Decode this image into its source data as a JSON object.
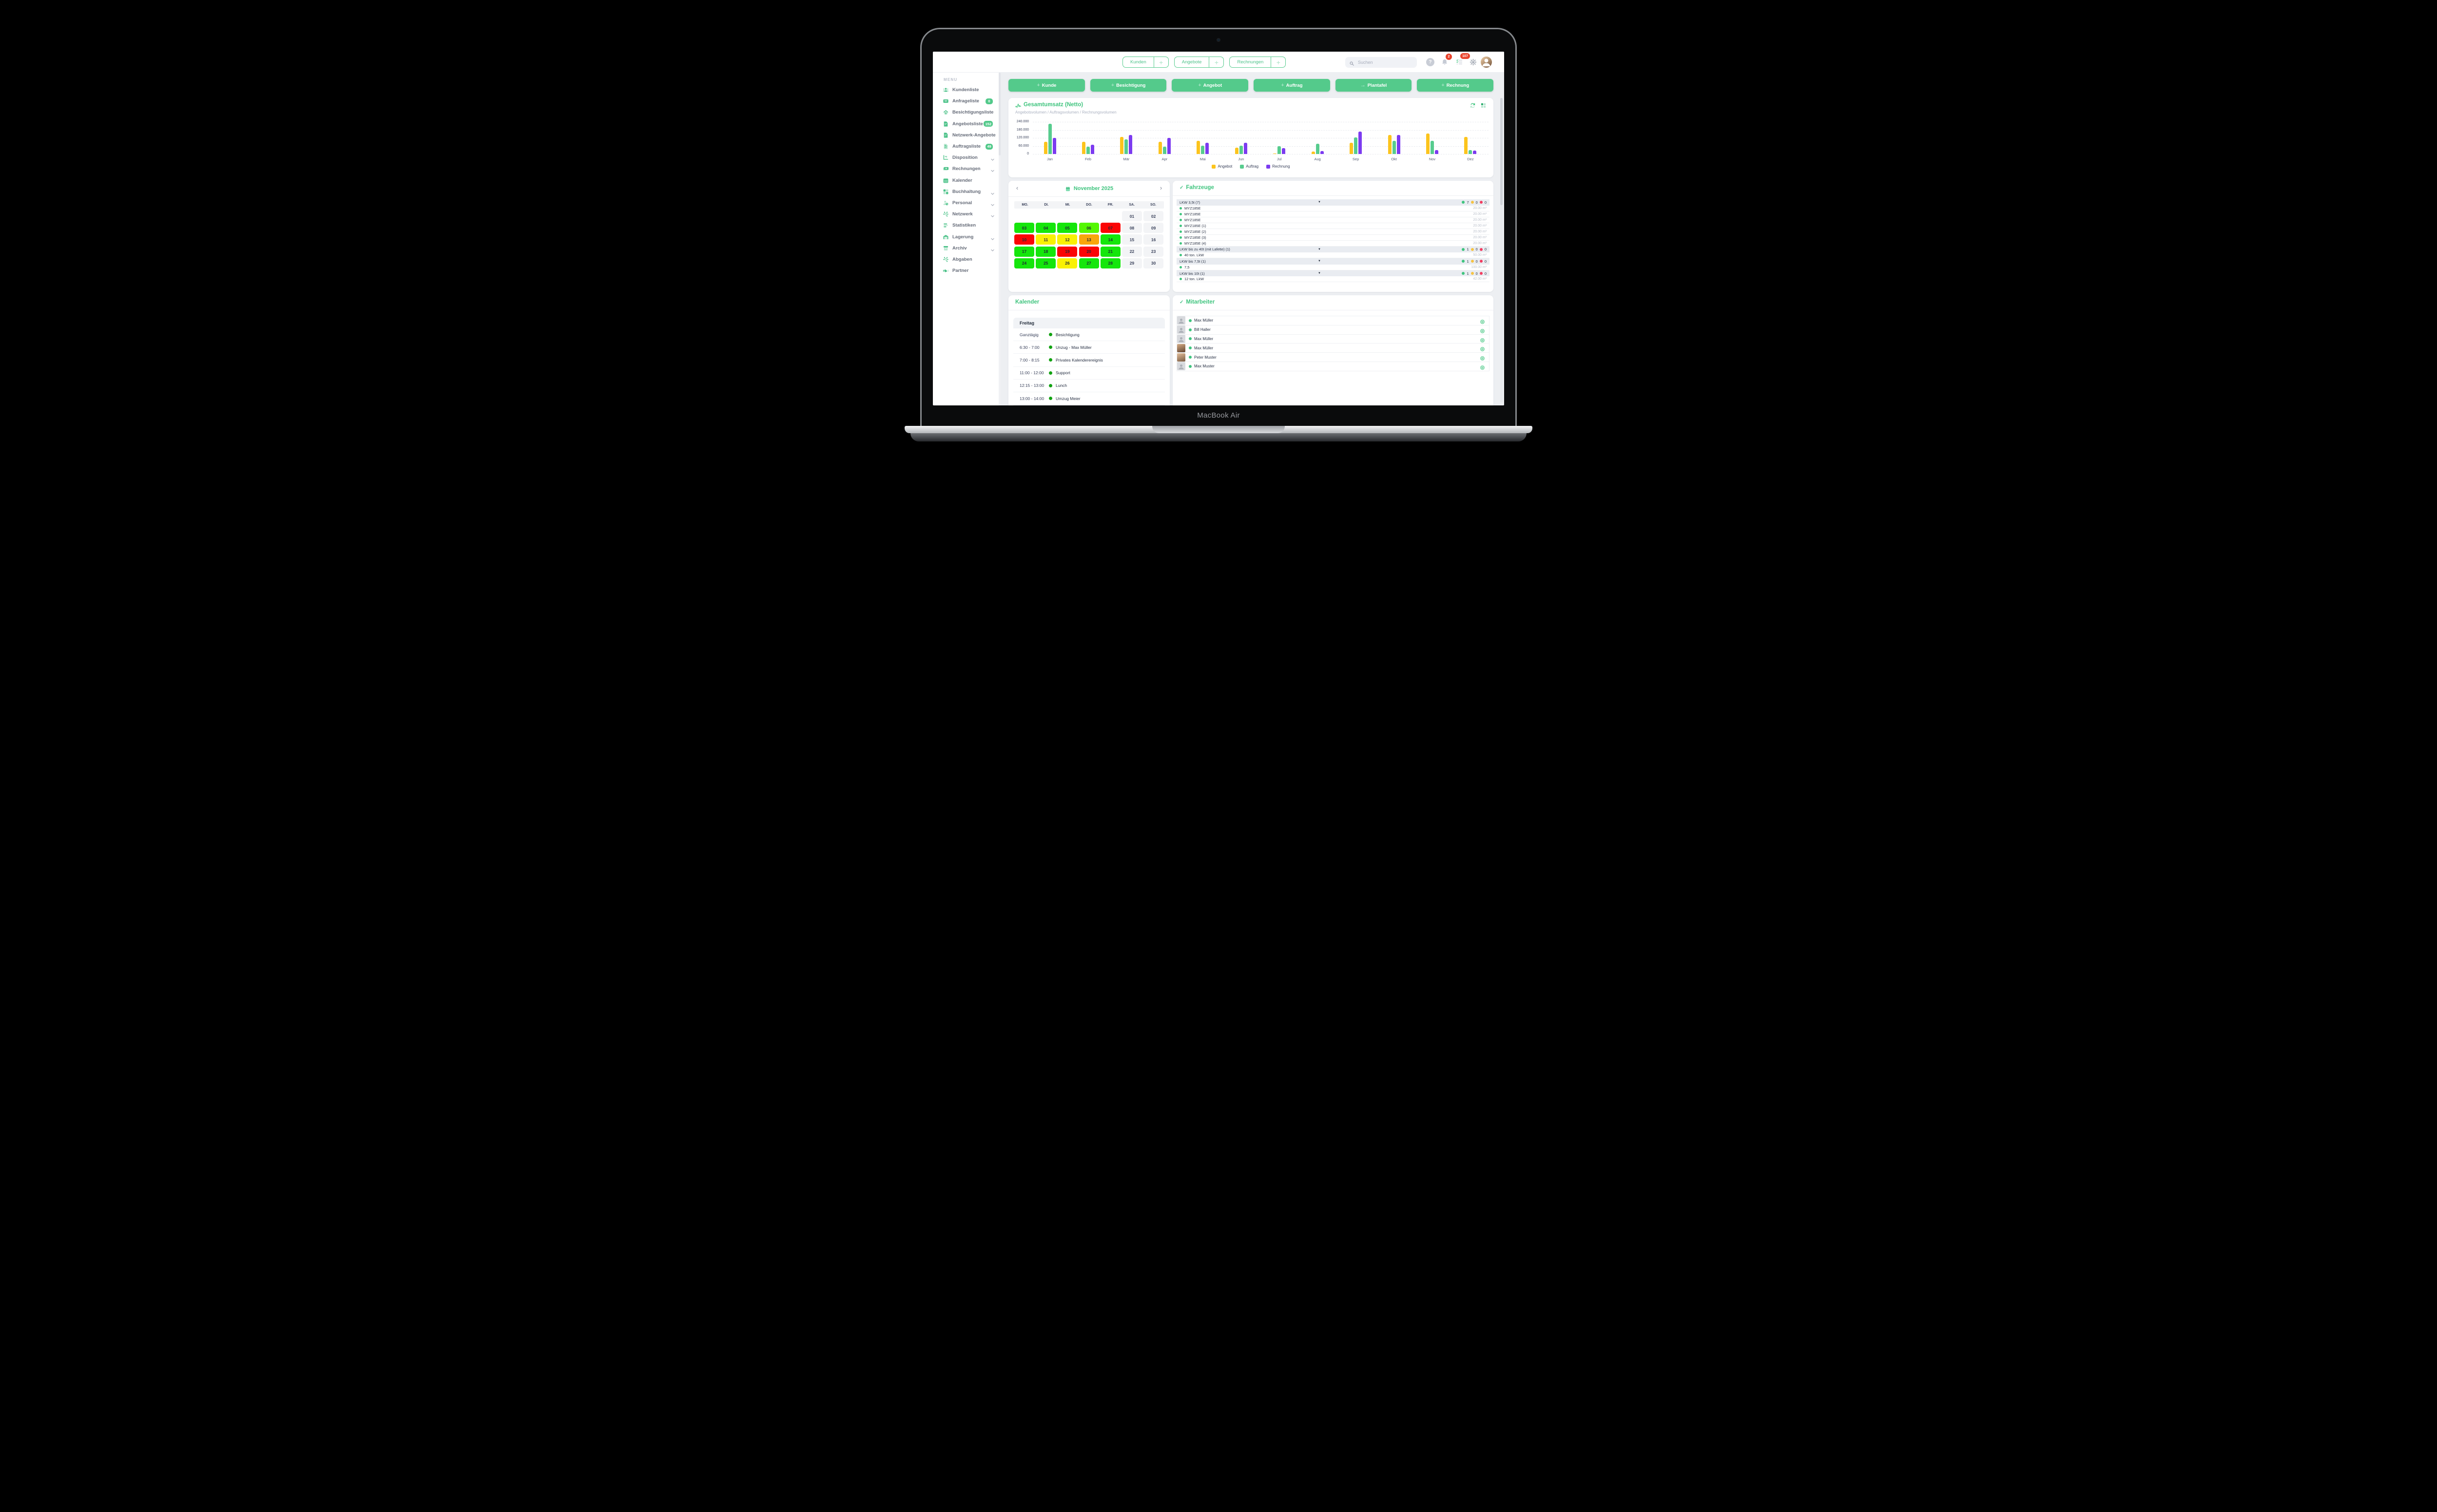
{
  "device": {
    "label": "MacBook Air"
  },
  "topbar": {
    "collapse": "«",
    "tabs": [
      {
        "label": "Kunden",
        "plus": "+"
      },
      {
        "label": "Angebote",
        "plus": "+"
      },
      {
        "label": "Rechnungen",
        "plus": "+"
      }
    ],
    "search": {
      "placeholder": "Suchen"
    },
    "help_label": "?",
    "notification_badge": "2",
    "task_badge": "107"
  },
  "sidebar": {
    "menu_label": "MENU",
    "items": [
      {
        "label": "Kundenliste",
        "icon": "users-icon",
        "badge": null,
        "chevron": false
      },
      {
        "label": "Anfrageliste",
        "icon": "inbox-icon",
        "badge": "0",
        "chevron": false
      },
      {
        "label": "Besichtigungsliste",
        "icon": "house-icon",
        "badge": null,
        "chevron": false
      },
      {
        "label": "Angebotsliste",
        "icon": "document-icon",
        "badge": "152",
        "chevron": false
      },
      {
        "label": "Netzwerk-Angebote",
        "icon": "document-icon",
        "badge": null,
        "chevron": false
      },
      {
        "label": "Auftragsliste",
        "icon": "contract-icon",
        "badge": "49",
        "chevron": false
      },
      {
        "label": "Disposition",
        "icon": "disposition-icon",
        "badge": null,
        "chevron": true
      },
      {
        "label": "Rechnungen",
        "icon": "money-icon",
        "badge": null,
        "chevron": true
      },
      {
        "label": "Kalender",
        "icon": "calendar-icon",
        "badge": null,
        "chevron": false
      },
      {
        "label": "Buchhaltung",
        "icon": "calculator-icon",
        "badge": null,
        "chevron": true
      },
      {
        "label": "Personal",
        "icon": "person-clock-icon",
        "badge": null,
        "chevron": true
      },
      {
        "label": "Netzwerk",
        "icon": "network-icon",
        "badge": null,
        "chevron": true
      },
      {
        "label": "Statistiken",
        "icon": "stats-icon",
        "badge": null,
        "chevron": false
      },
      {
        "label": "Lagerung",
        "icon": "warehouse-icon",
        "badge": null,
        "chevron": true
      },
      {
        "label": "Archiv",
        "icon": "archive-icon",
        "badge": null,
        "chevron": true
      },
      {
        "label": "Abgaben",
        "icon": "network-icon",
        "badge": null,
        "chevron": false
      },
      {
        "label": "Partner",
        "icon": "handshake-icon",
        "badge": null,
        "chevron": false
      }
    ]
  },
  "actions": [
    {
      "icon": "+",
      "label": "Kunde"
    },
    {
      "icon": "+",
      "label": "Besichtigung"
    },
    {
      "icon": "+",
      "label": "Angebot"
    },
    {
      "icon": "+",
      "label": "Auftrag"
    },
    {
      "icon": "→",
      "label": "Plantafel"
    },
    {
      "icon": "+",
      "label": "Rechnung"
    }
  ],
  "chart_data": {
    "type": "bar",
    "title": "Gesamtumsatz (Netto)",
    "subtitle": "Angebotsvolumen / Auftragsvolumen / Rechnungsvolumen",
    "categories": [
      "Jan",
      "Feb",
      "Mär",
      "Apr",
      "Mai",
      "Jun",
      "Jul",
      "Aug",
      "Sep",
      "Okt",
      "Nov",
      "Dez"
    ],
    "series": [
      {
        "name": "Angebot",
        "color": "#fcc41d",
        "values": [
          92000,
          92000,
          129000,
          92000,
          98000,
          47000,
          5000,
          17000,
          84000,
          143000,
          152000,
          126000
        ]
      },
      {
        "name": "Auftrag",
        "color": "#57cc8e",
        "values": [
          225000,
          56000,
          109000,
          56000,
          62000,
          62000,
          59000,
          78000,
          125000,
          98000,
          98000,
          28000
        ]
      },
      {
        "name": "Rechnung",
        "color": "#7c3bf0",
        "values": [
          121000,
          69000,
          142000,
          120000,
          84000,
          84000,
          45000,
          23000,
          166000,
          142000,
          28000,
          26000
        ]
      }
    ],
    "ylim": [
      0,
      240000
    ],
    "yticks": [
      240000,
      180000,
      120000,
      60000,
      0
    ],
    "ytick_labels": [
      "240.000",
      "180.000",
      "120.000",
      "60.000",
      "0"
    ],
    "grid": true,
    "legend_position": "bottom"
  },
  "month_calendar": {
    "title": "November 2025",
    "prev": "‹",
    "next": "›",
    "weekdays": [
      "MO.",
      "DI.",
      "MI.",
      "DO.",
      "FR.",
      "SA.",
      "SO."
    ],
    "day_colors": {
      "green": "#15e60c",
      "lightgreen": "#55f702",
      "red": "#fb0505",
      "yellow": "#f9f104",
      "orange": "#f9a60c",
      "plain": "#f3f4f6"
    },
    "weeks": [
      [
        {
          "day": "",
          "color": "empty"
        },
        {
          "day": "",
          "color": "empty"
        },
        {
          "day": "",
          "color": "empty"
        },
        {
          "day": "",
          "color": "empty"
        },
        {
          "day": "",
          "color": "empty"
        },
        {
          "day": "01",
          "color": "plain"
        },
        {
          "day": "02",
          "color": "plain"
        }
      ],
      [
        {
          "day": "03",
          "color": "green"
        },
        {
          "day": "04",
          "color": "green"
        },
        {
          "day": "05",
          "color": "green"
        },
        {
          "day": "06",
          "color": "lightgreen"
        },
        {
          "day": "07",
          "color": "red"
        },
        {
          "day": "08",
          "color": "plain"
        },
        {
          "day": "09",
          "color": "plain"
        }
      ],
      [
        {
          "day": "10",
          "color": "red"
        },
        {
          "day": "11",
          "color": "yellow"
        },
        {
          "day": "12",
          "color": "yellow"
        },
        {
          "day": "13",
          "color": "orange"
        },
        {
          "day": "14",
          "color": "green"
        },
        {
          "day": "15",
          "color": "plain"
        },
        {
          "day": "16",
          "color": "plain"
        }
      ],
      [
        {
          "day": "17",
          "color": "green"
        },
        {
          "day": "18",
          "color": "green"
        },
        {
          "day": "19",
          "color": "red"
        },
        {
          "day": "20",
          "color": "red"
        },
        {
          "day": "21",
          "color": "green"
        },
        {
          "day": "22",
          "color": "plain"
        },
        {
          "day": "23",
          "color": "plain"
        }
      ],
      [
        {
          "day": "24",
          "color": "green"
        },
        {
          "day": "25",
          "color": "green"
        },
        {
          "day": "26",
          "color": "yellow"
        },
        {
          "day": "27",
          "color": "green"
        },
        {
          "day": "28",
          "color": "green"
        },
        {
          "day": "29",
          "color": "plain"
        },
        {
          "day": "30",
          "color": "plain"
        }
      ]
    ]
  },
  "vehicles": {
    "title": "Fahrzeuge",
    "status_colors": {
      "green": "#3fc47e",
      "yellow": "#f6c343",
      "red": "#f23d61"
    },
    "groups": [
      {
        "name": "LKW 3,5t (7)",
        "green": "7",
        "yellow": "0",
        "red": "0",
        "rows": [
          {
            "name": "MYZ185E",
            "volume": "20.00 m³"
          },
          {
            "name": "MYZ185E",
            "volume": "20.00 m³"
          },
          {
            "name": "MYZ185E",
            "volume": "20.00 m³"
          },
          {
            "name": "MYZ185E (1)",
            "volume": "20.00 m³"
          },
          {
            "name": "MYZ185E (2)",
            "volume": "20.00 m³"
          },
          {
            "name": "MYZ185E (3)",
            "volume": "20.00 m³"
          },
          {
            "name": "MYZ185E (4)",
            "volume": "20.00 m³"
          }
        ]
      },
      {
        "name": "LKW bis zu 40t (mit Lafette) (1)",
        "green": "1",
        "yellow": "0",
        "red": "0",
        "rows": [
          {
            "name": "40 ton. LkW",
            "volume": "50.00 m³"
          }
        ]
      },
      {
        "name": "LKW bis 7,5t (1)",
        "green": "1",
        "yellow": "0",
        "red": "0",
        "rows": [
          {
            "name": "7,5",
            "volume": "100.00 m³"
          }
        ]
      },
      {
        "name": "LKW bis 10t (1)",
        "green": "1",
        "yellow": "0",
        "red": "0",
        "rows": [
          {
            "name": "12 ton. LkW",
            "volume": "42.00 m³"
          }
        ]
      }
    ]
  },
  "day_calendar": {
    "title": "Kalender",
    "day": "Freitag",
    "events": [
      {
        "time": "Ganztägig",
        "label": "Besichtigung"
      },
      {
        "time": "6:30 - 7:00",
        "label": "Unzug - Max Müller"
      },
      {
        "time": "7:00 - 8:15",
        "label": "Privates Kalenderereignis"
      },
      {
        "time": "11:00 - 12:00",
        "label": "Support"
      },
      {
        "time": "12:15 - 13:00",
        "label": "Lunch"
      },
      {
        "time": "13:00 - 14:00",
        "label": "Umzug Meier"
      }
    ]
  },
  "employees": {
    "title": "Mitarbeiter",
    "rows": [
      {
        "name": "Max Müller",
        "avatar": "placeholder"
      },
      {
        "name": "Bill Haller",
        "avatar": "placeholder"
      },
      {
        "name": "Max Müller",
        "avatar": "placeholder"
      },
      {
        "name": "Max Müller",
        "avatar": "photo-woman"
      },
      {
        "name": "Peter Muster",
        "avatar": "photo-man"
      },
      {
        "name": "Max Muster",
        "avatar": "placeholder"
      }
    ]
  },
  "help_button": {
    "label": "?"
  }
}
